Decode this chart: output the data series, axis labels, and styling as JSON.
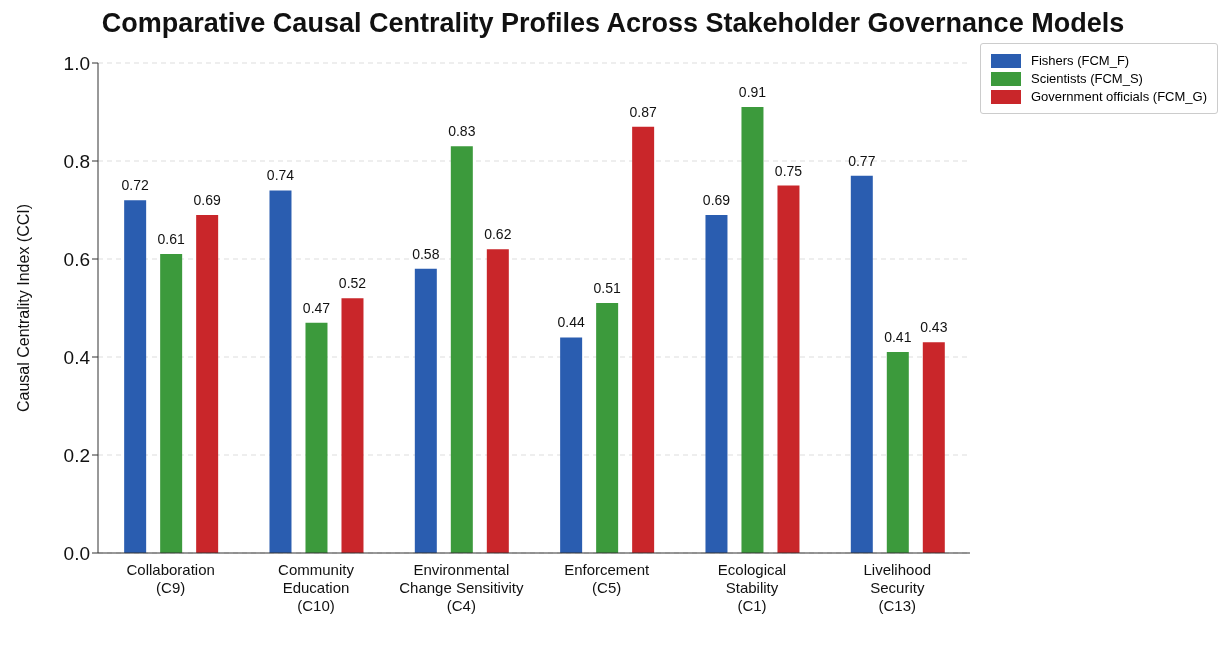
{
  "chart_data": {
    "type": "bar",
    "title": "Comparative Causal Centrality Profiles Across Stakeholder Governance Models",
    "ylabel": "Causal Centrality Index (CCI)",
    "categories": [
      "Collaboration (C9)",
      "Community Education (C10)",
      "Environmental Change Sensitivity (C4)",
      "Enforcement (C5)",
      "Ecological Stability (C1)",
      "Livelihood Security (C13)"
    ],
    "series": [
      {
        "name": "Fishers (FCM_F)",
        "color": "#2a5db0",
        "values": [
          0.72,
          0.74,
          0.58,
          0.44,
          0.69,
          0.77
        ]
      },
      {
        "name": "Scientists (FCM_S)",
        "color": "#3c9a3c",
        "values": [
          0.61,
          0.47,
          0.83,
          0.51,
          0.91,
          0.41
        ]
      },
      {
        "name": "Government officials (FCM_G)",
        "color": "#c9262a",
        "values": [
          0.69,
          0.52,
          0.62,
          0.87,
          0.75,
          0.43
        ]
      }
    ],
    "ylim": [
      0,
      1
    ],
    "yticks": [
      {
        "value": 0,
        "label": "0.0"
      },
      {
        "value": 0.2,
        "label": "0.2"
      },
      {
        "value": 0.4,
        "label": "0.4"
      },
      {
        "value": 0.6,
        "label": "0.6"
      },
      {
        "value": 0.8,
        "label": "0.8"
      },
      {
        "value": 1,
        "label": "1.0"
      }
    ],
    "grid": "y",
    "legend": "top right",
    "data_labels": true
  }
}
